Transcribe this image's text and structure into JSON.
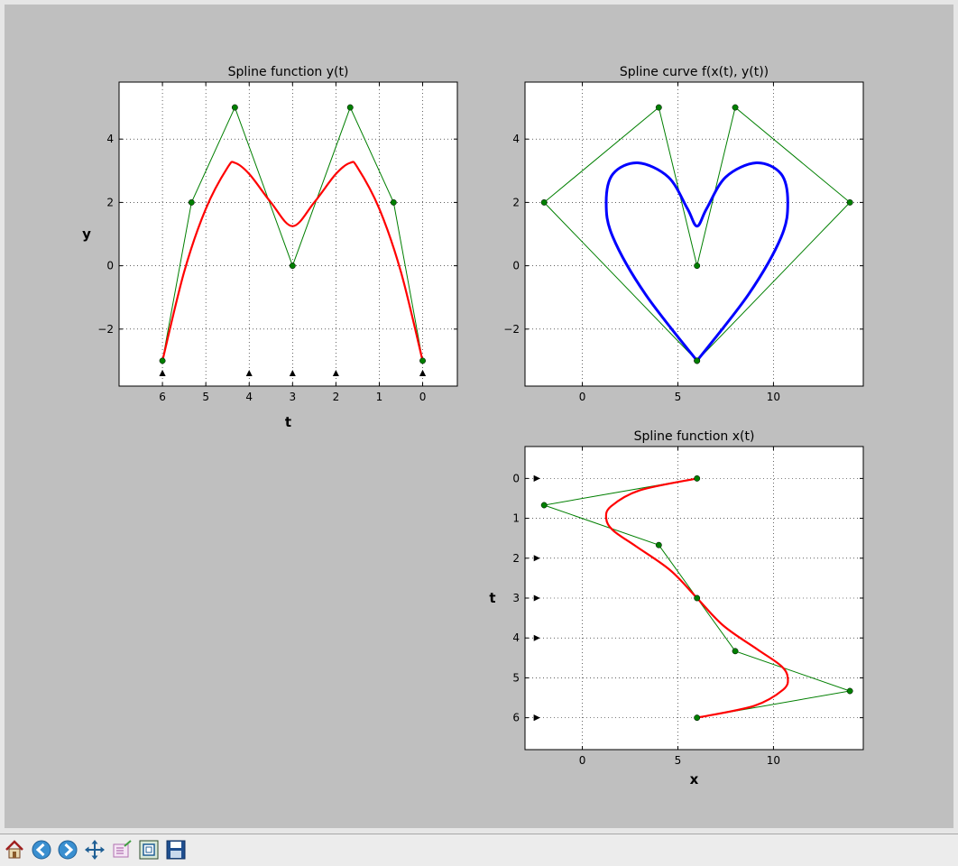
{
  "toolbar": {
    "buttons": [
      {
        "name": "home-button",
        "icon": "home-icon"
      },
      {
        "name": "back-button",
        "icon": "back-arrow-icon"
      },
      {
        "name": "forward-button",
        "icon": "forward-arrow-icon"
      },
      {
        "name": "pan-button",
        "icon": "pan-arrows-icon"
      },
      {
        "name": "subplots-button",
        "icon": "subplots-config-icon"
      },
      {
        "name": "edit-axes-button",
        "icon": "edit-axes-icon"
      },
      {
        "name": "save-button",
        "icon": "save-floppy-icon"
      }
    ]
  },
  "colors": {
    "figure_bg": "#bfbfbf",
    "axes_bg": "#ffffff",
    "control_polygon": "#007f00",
    "spline_y": "#ff0000",
    "spline_x": "#ff0000",
    "curve": "#0000ff",
    "knot_marker": "#000000"
  },
  "chart_data": [
    {
      "id": "yt",
      "type": "line",
      "title": "Spline function y(t)",
      "xlabel": "t",
      "ylabel": "y",
      "xlim": [
        7,
        -0.8
      ],
      "ylim": [
        -3.8,
        5.8
      ],
      "xticks": [
        6,
        5,
        4,
        3,
        2,
        1,
        0
      ],
      "yticks": [
        4,
        2,
        0,
        -2
      ],
      "grid": true,
      "series": [
        {
          "role": "control_polygon",
          "x": [
            6,
            5.33,
            4.33,
            3,
            1.67,
            0.67,
            0
          ],
          "y": [
            -3,
            2,
            5,
            0,
            5,
            2,
            -3
          ],
          "markers": true
        },
        {
          "role": "spline",
          "x": [
            6,
            5.5,
            5,
            4.5,
            4.33,
            4,
            3.5,
            3,
            2.5,
            2,
            1.67,
            1.5,
            1,
            0.5,
            0
          ],
          "y": [
            -3,
            -0.2,
            1.8,
            3.1,
            3.25,
            2.9,
            2.0,
            1.25,
            2.0,
            2.9,
            3.25,
            3.1,
            1.8,
            -0.2,
            -3
          ]
        },
        {
          "role": "knots",
          "x": [
            6,
            6,
            4,
            3,
            2,
            0,
            0
          ],
          "y": [
            -3.4,
            -3.4,
            -3.4,
            -3.4,
            -3.4,
            -3.4,
            -3.4
          ],
          "marker": "triangle-up"
        }
      ]
    },
    {
      "id": "curve",
      "type": "line",
      "title": "Spline curve f(x(t), y(t))",
      "xlabel": "",
      "ylabel": "",
      "xlim": [
        -3,
        14.7
      ],
      "ylim": [
        -3.8,
        5.8
      ],
      "xticks": [
        0,
        5,
        10
      ],
      "yticks": [
        4,
        2,
        0,
        -2
      ],
      "grid": true,
      "series": [
        {
          "role": "control_polygon",
          "x": [
            6,
            -2,
            4,
            6,
            8,
            14,
            6
          ],
          "y": [
            -3,
            2,
            5,
            0,
            5,
            2,
            -3
          ],
          "markers": true
        },
        {
          "role": "curve",
          "x": [
            6,
            3.3,
            1.6,
            1.25,
            1.6,
            2.9,
            4.5,
            5.5,
            6,
            6.5,
            7.5,
            9.1,
            10.4,
            10.75,
            10.4,
            8.7,
            6
          ],
          "y": [
            -3,
            -0.9,
            0.9,
            2.0,
            2.9,
            3.25,
            2.8,
            1.8,
            1.25,
            1.8,
            2.8,
            3.25,
            2.9,
            2.0,
            0.9,
            -0.9,
            -3
          ]
        }
      ]
    },
    {
      "id": "xt",
      "type": "line",
      "title": "Spline function x(t)",
      "xlabel": "x",
      "ylabel": "t",
      "xlim": [
        -3,
        14.7
      ],
      "ylim": [
        6.8,
        -0.8
      ],
      "xticks": [
        0,
        5,
        10
      ],
      "yticks": [
        0,
        1,
        2,
        3,
        4,
        5,
        6
      ],
      "grid": true,
      "series": [
        {
          "role": "control_polygon",
          "x": [
            6,
            -2,
            4,
            6,
            8,
            14,
            6
          ],
          "y": [
            0,
            0.67,
            1.67,
            3,
            4.33,
            5.33,
            6
          ],
          "markers": true
        },
        {
          "role": "spline",
          "x": [
            6,
            3.0,
            1.5,
            1.25,
            1.6,
            2.8,
            4.6,
            6,
            7.4,
            9.2,
            10.4,
            10.75,
            10.5,
            9.0,
            6
          ],
          "y": [
            0,
            0.3,
            0.7,
            1.0,
            1.3,
            1.7,
            2.3,
            3,
            3.7,
            4.3,
            4.7,
            5.0,
            5.3,
            5.7,
            6
          ]
        },
        {
          "role": "knots",
          "x": [
            -2.4,
            -2.4,
            -2.4,
            -2.4,
            -2.4,
            -2.4,
            -2.4
          ],
          "y": [
            0,
            0,
            2,
            3,
            4,
            6,
            6
          ],
          "marker": "triangle-right"
        }
      ]
    }
  ]
}
